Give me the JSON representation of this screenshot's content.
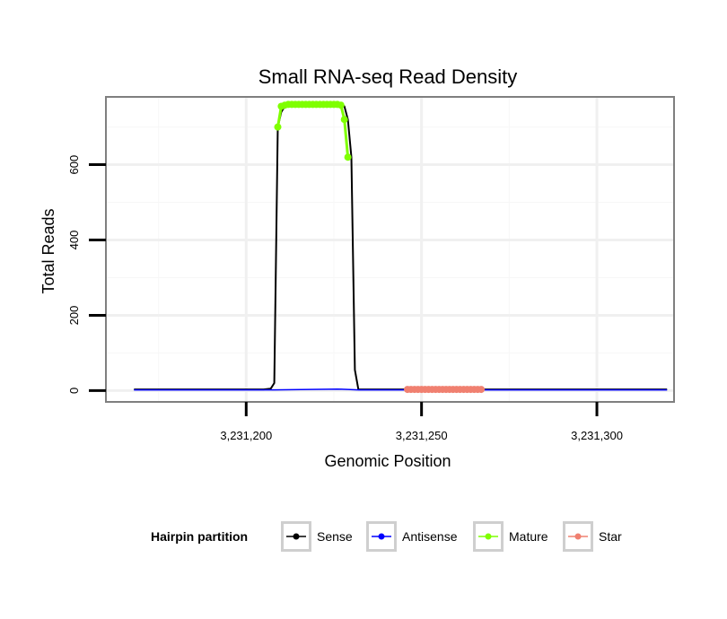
{
  "chart_data": {
    "type": "line",
    "title": "Small RNA-seq Read Density",
    "xlabel": "Genomic Position",
    "ylabel": "Total Reads",
    "xlim": [
      3231160,
      3231322
    ],
    "ylim": [
      -30,
      780
    ],
    "x_ticks": [
      3231200,
      3231250,
      3231300
    ],
    "x_tick_labels": [
      "3,231,200",
      "3,231,250",
      "3,231,300"
    ],
    "y_ticks": [
      0,
      200,
      400,
      600
    ],
    "y_tick_labels": [
      "0",
      "200",
      "400",
      "600"
    ],
    "grid": true,
    "legend": {
      "title": "Hairpin partition",
      "position": "bottom",
      "entries": [
        {
          "name": "Sense",
          "color": "#000000"
        },
        {
          "name": "Antisense",
          "color": "#0000ff"
        },
        {
          "name": "Mature",
          "color": "#7fff00"
        },
        {
          "name": "Star",
          "color": "#f08070"
        }
      ]
    },
    "series": [
      {
        "name": "Sense",
        "color": "#000000",
        "x": [
          3231168,
          3231205,
          3231207,
          3231208,
          3231209,
          3231210,
          3231211,
          3231212,
          3231225,
          3231227,
          3231228,
          3231229,
          3231230,
          3231231,
          3231232,
          3231320
        ],
        "y": [
          3,
          3,
          5,
          20,
          700,
          740,
          755,
          760,
          760,
          760,
          755,
          720,
          620,
          55,
          3,
          3
        ]
      },
      {
        "name": "Antisense",
        "color": "#0000ff",
        "x": [
          3231168,
          3231208,
          3231226,
          3231232,
          3231320
        ],
        "y": [
          2,
          2,
          4,
          2,
          2
        ]
      },
      {
        "name": "Mature",
        "color": "#7fff00",
        "x": [
          3231209,
          3231210,
          3231211,
          3231212,
          3231213,
          3231214,
          3231215,
          3231216,
          3231217,
          3231218,
          3231219,
          3231220,
          3231221,
          3231222,
          3231223,
          3231224,
          3231225,
          3231226,
          3231227,
          3231228,
          3231229
        ],
        "y": [
          700,
          755,
          758,
          760,
          760,
          760,
          760,
          760,
          760,
          760,
          760,
          760,
          760,
          760,
          760,
          760,
          760,
          760,
          758,
          720,
          620
        ]
      },
      {
        "name": "Star",
        "color": "#f08070",
        "x": [
          3231246,
          3231247,
          3231248,
          3231249,
          3231250,
          3231251,
          3231252,
          3231253,
          3231254,
          3231255,
          3231256,
          3231257,
          3231258,
          3231259,
          3231260,
          3231261,
          3231262,
          3231263,
          3231264,
          3231265,
          3231266,
          3231267
        ],
        "y": [
          3,
          3,
          3,
          3,
          3,
          3,
          3,
          3,
          3,
          3,
          3,
          3,
          3,
          3,
          3,
          3,
          3,
          3,
          3,
          3,
          3,
          3
        ]
      }
    ]
  }
}
